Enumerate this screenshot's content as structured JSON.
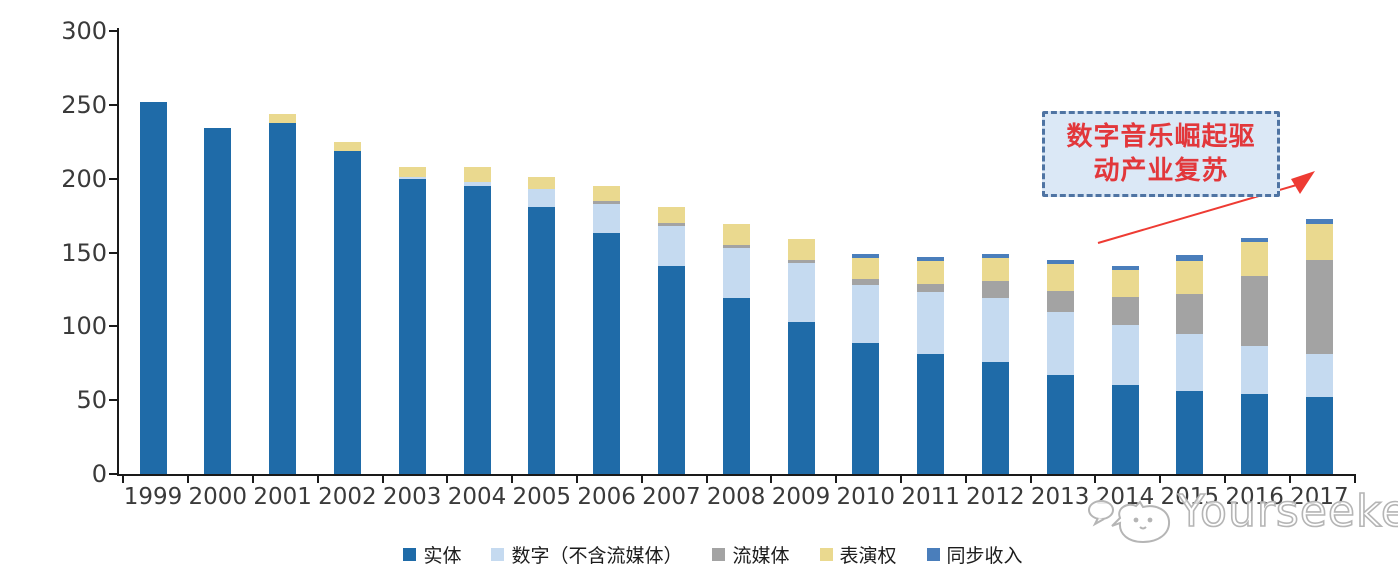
{
  "watermark": {
    "text": "Yourseeker",
    "logo": "cat-face-logo-icon",
    "color": "#b5b5b5"
  },
  "annotation": {
    "line1": "数字音乐崛起驱",
    "line2": "动产业复苏",
    "text_color": "#e2373b",
    "box_fill": "#dbe8f6",
    "border_color": "#4f74a3",
    "arrow_color": "#ee3b33"
  },
  "axis": {
    "color": "#1a1a1a",
    "label_color": "#3a3a3a"
  },
  "chart_data": {
    "type": "bar",
    "stacked": true,
    "title": "",
    "xlabel": "",
    "ylabel": "",
    "ylim": [
      0,
      300
    ],
    "yticks": [
      "0",
      "50",
      "100",
      "150",
      "200",
      "250",
      "300"
    ],
    "ytick_values": [
      0,
      50,
      100,
      150,
      200,
      250,
      300
    ],
    "grid": false,
    "legend_position": "bottom",
    "categories": [
      "1999",
      "2000",
      "2001",
      "2002",
      "2003",
      "2004",
      "2005",
      "2006",
      "2007",
      "2008",
      "2009",
      "2010",
      "2011",
      "2012",
      "2013",
      "2014",
      "2015",
      "2016",
      "2017"
    ],
    "series": [
      {
        "name": "实体",
        "color": "#1f6ba8",
        "values": [
          252,
          234,
          238,
          219,
          200,
          195,
          181,
          163,
          141,
          119,
          103,
          89,
          81,
          76,
          67,
          60,
          56,
          54,
          52
        ]
      },
      {
        "name": "数字（不含流媒体）",
        "color": "#c5daf0",
        "values": [
          0,
          0,
          0,
          0,
          1,
          3,
          12,
          20,
          27,
          34,
          40,
          39,
          42,
          43,
          43,
          41,
          39,
          33,
          29
        ]
      },
      {
        "name": "流媒体",
        "color": "#a3a3a3",
        "values": [
          0,
          0,
          0,
          0,
          0,
          0,
          0,
          2,
          2,
          2,
          2,
          4,
          6,
          12,
          14,
          19,
          27,
          47,
          64
        ]
      },
      {
        "name": "表演权",
        "color": "#ead98f",
        "values": [
          0,
          0,
          6,
          6,
          7,
          10,
          8,
          10,
          11,
          14,
          14,
          14,
          15,
          15,
          18,
          18,
          22,
          23,
          24
        ]
      },
      {
        "name": "同步收入",
        "color": "#4a7ebb",
        "values": [
          0,
          0,
          0,
          0,
          0,
          0,
          0,
          0,
          0,
          0,
          0,
          3,
          3,
          3,
          3,
          3,
          4,
          3,
          4
        ]
      }
    ],
    "totals": [
      252,
      234,
      244,
      225,
      208,
      208,
      201,
      195,
      181,
      169,
      159,
      149,
      147,
      149,
      145,
      141,
      148,
      160,
      173
    ]
  }
}
